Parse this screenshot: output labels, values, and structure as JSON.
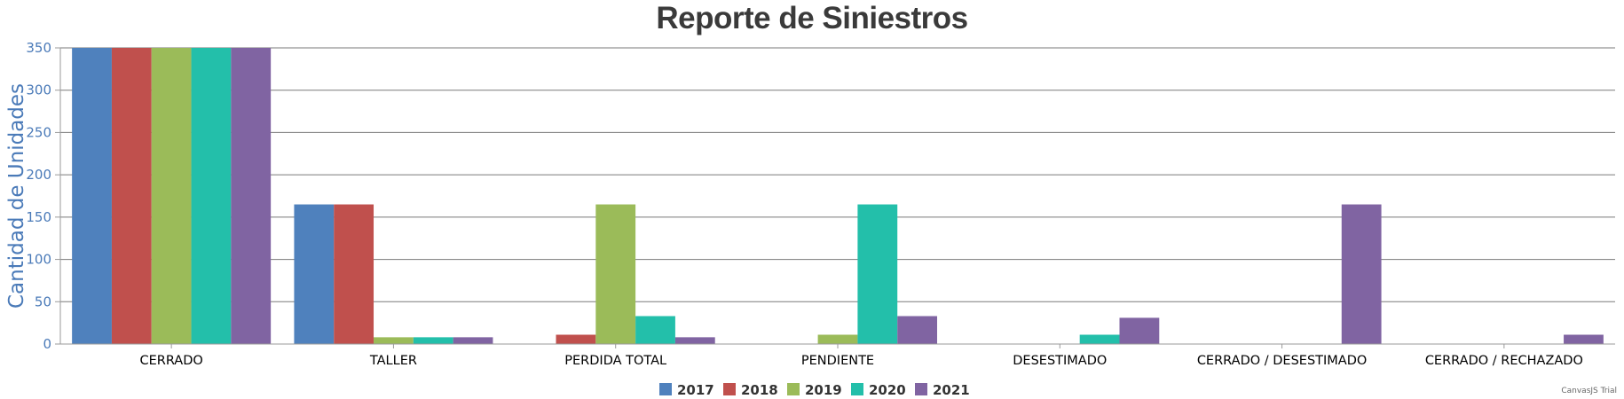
{
  "chart_data": {
    "type": "bar",
    "title": "Reporte de Siniestros",
    "ylabel": "Cantidad de Unidades",
    "xlabel": "",
    "ylim": [
      0,
      350
    ],
    "yticks": [
      0,
      50,
      100,
      150,
      200,
      250,
      300,
      350
    ],
    "grid": true,
    "legend_placement": "bottom-center",
    "categories": [
      "CERRADO",
      "TALLER",
      "PERDIDA TOTAL",
      "PENDIENTE",
      "DESESTIMADO",
      "CERRADO / DESESTIMADO",
      "CERRADO / RECHAZADO"
    ],
    "series": [
      {
        "name": "2017",
        "color": "#4f81bd",
        "values": [
          350,
          165,
          0,
          0,
          0,
          0,
          0
        ]
      },
      {
        "name": "2018",
        "color": "#c0504d",
        "values": [
          350,
          165,
          11,
          0,
          0,
          0,
          0
        ]
      },
      {
        "name": "2019",
        "color": "#9bbb59",
        "values": [
          350,
          8,
          165,
          11,
          0,
          0,
          0
        ]
      },
      {
        "name": "2020",
        "color": "#23bfaa",
        "values": [
          350,
          8,
          33,
          165,
          11,
          0,
          0
        ]
      },
      {
        "name": "2021",
        "color": "#8064a2",
        "values": [
          350,
          8,
          8,
          33,
          31,
          165,
          11
        ]
      }
    ]
  },
  "credit": "CanvasJS Trial"
}
